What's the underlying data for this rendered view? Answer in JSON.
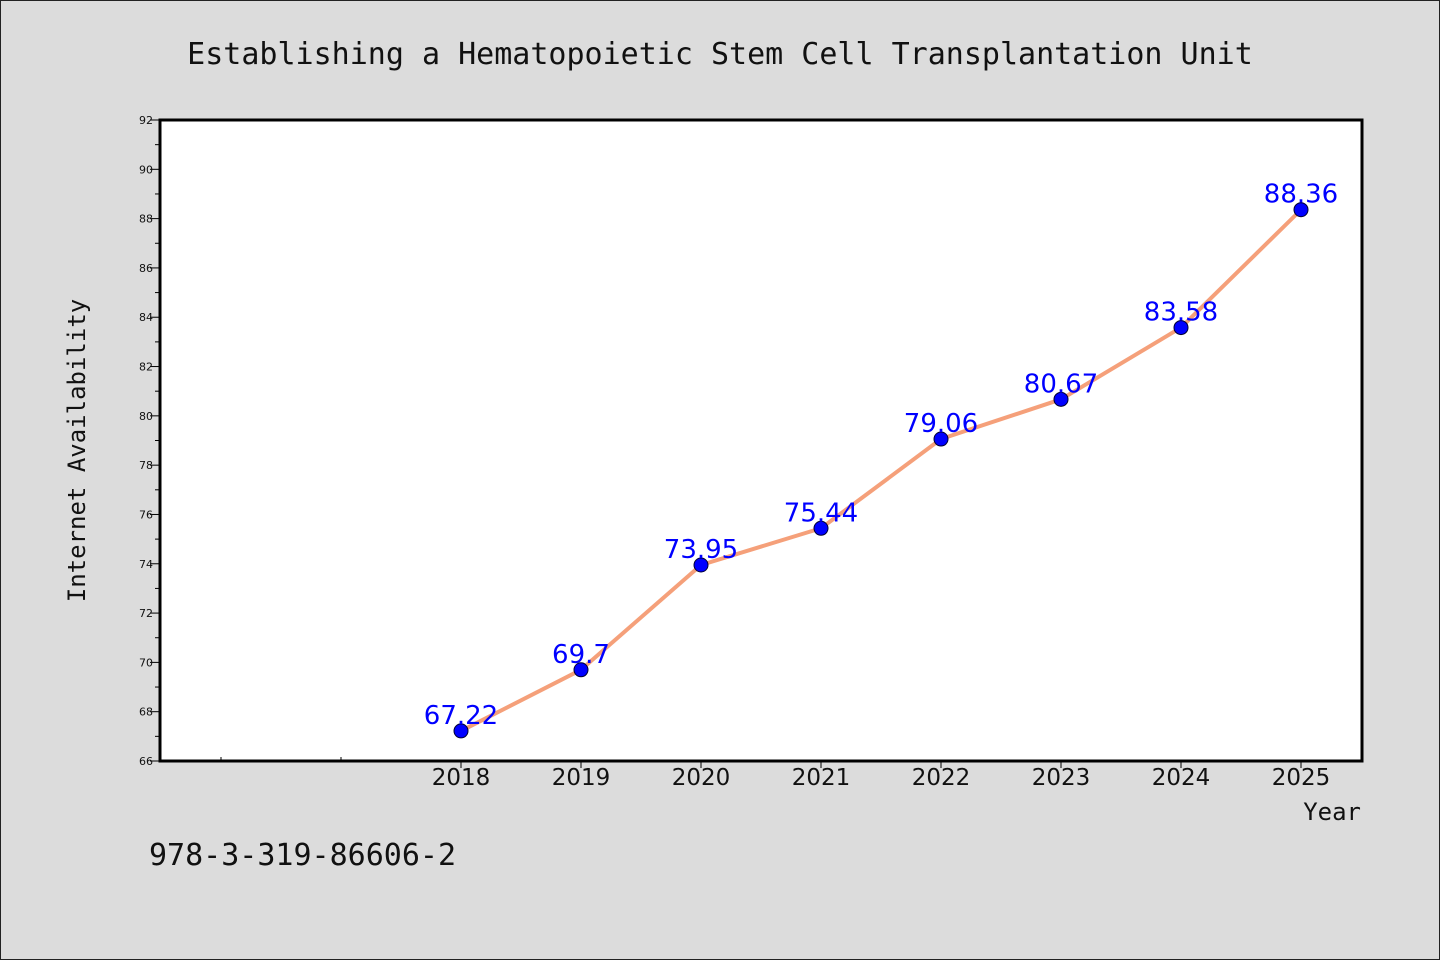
{
  "chart_data": {
    "type": "line",
    "title": "Establishing a Hematopoietic Stem Cell Transplantation Unit",
    "xlabel": "Year",
    "ylabel": "Internet Availability",
    "categories": [
      "2018",
      "2019",
      "2020",
      "2021",
      "2022",
      "2023",
      "2024",
      "2025"
    ],
    "x_slots_before_first": 2,
    "series": [
      {
        "values": [
          67.22,
          69.7,
          73.95,
          75.44,
          79.06,
          80.67,
          83.58,
          88.36
        ],
        "line_color": "#f5a07a",
        "marker_color": "#0000ff",
        "label_color": "#0000ff"
      }
    ],
    "ylim": [
      66,
      92
    ],
    "y_major_ticks": [
      66,
      68,
      70,
      72,
      74,
      76,
      78,
      80,
      82,
      84,
      86,
      88,
      90,
      92
    ],
    "grid": false,
    "plot_background": "#ffffff",
    "figure_background": "#dcdcdc"
  },
  "footer": {
    "isbn": "978-3-319-86606-2"
  }
}
